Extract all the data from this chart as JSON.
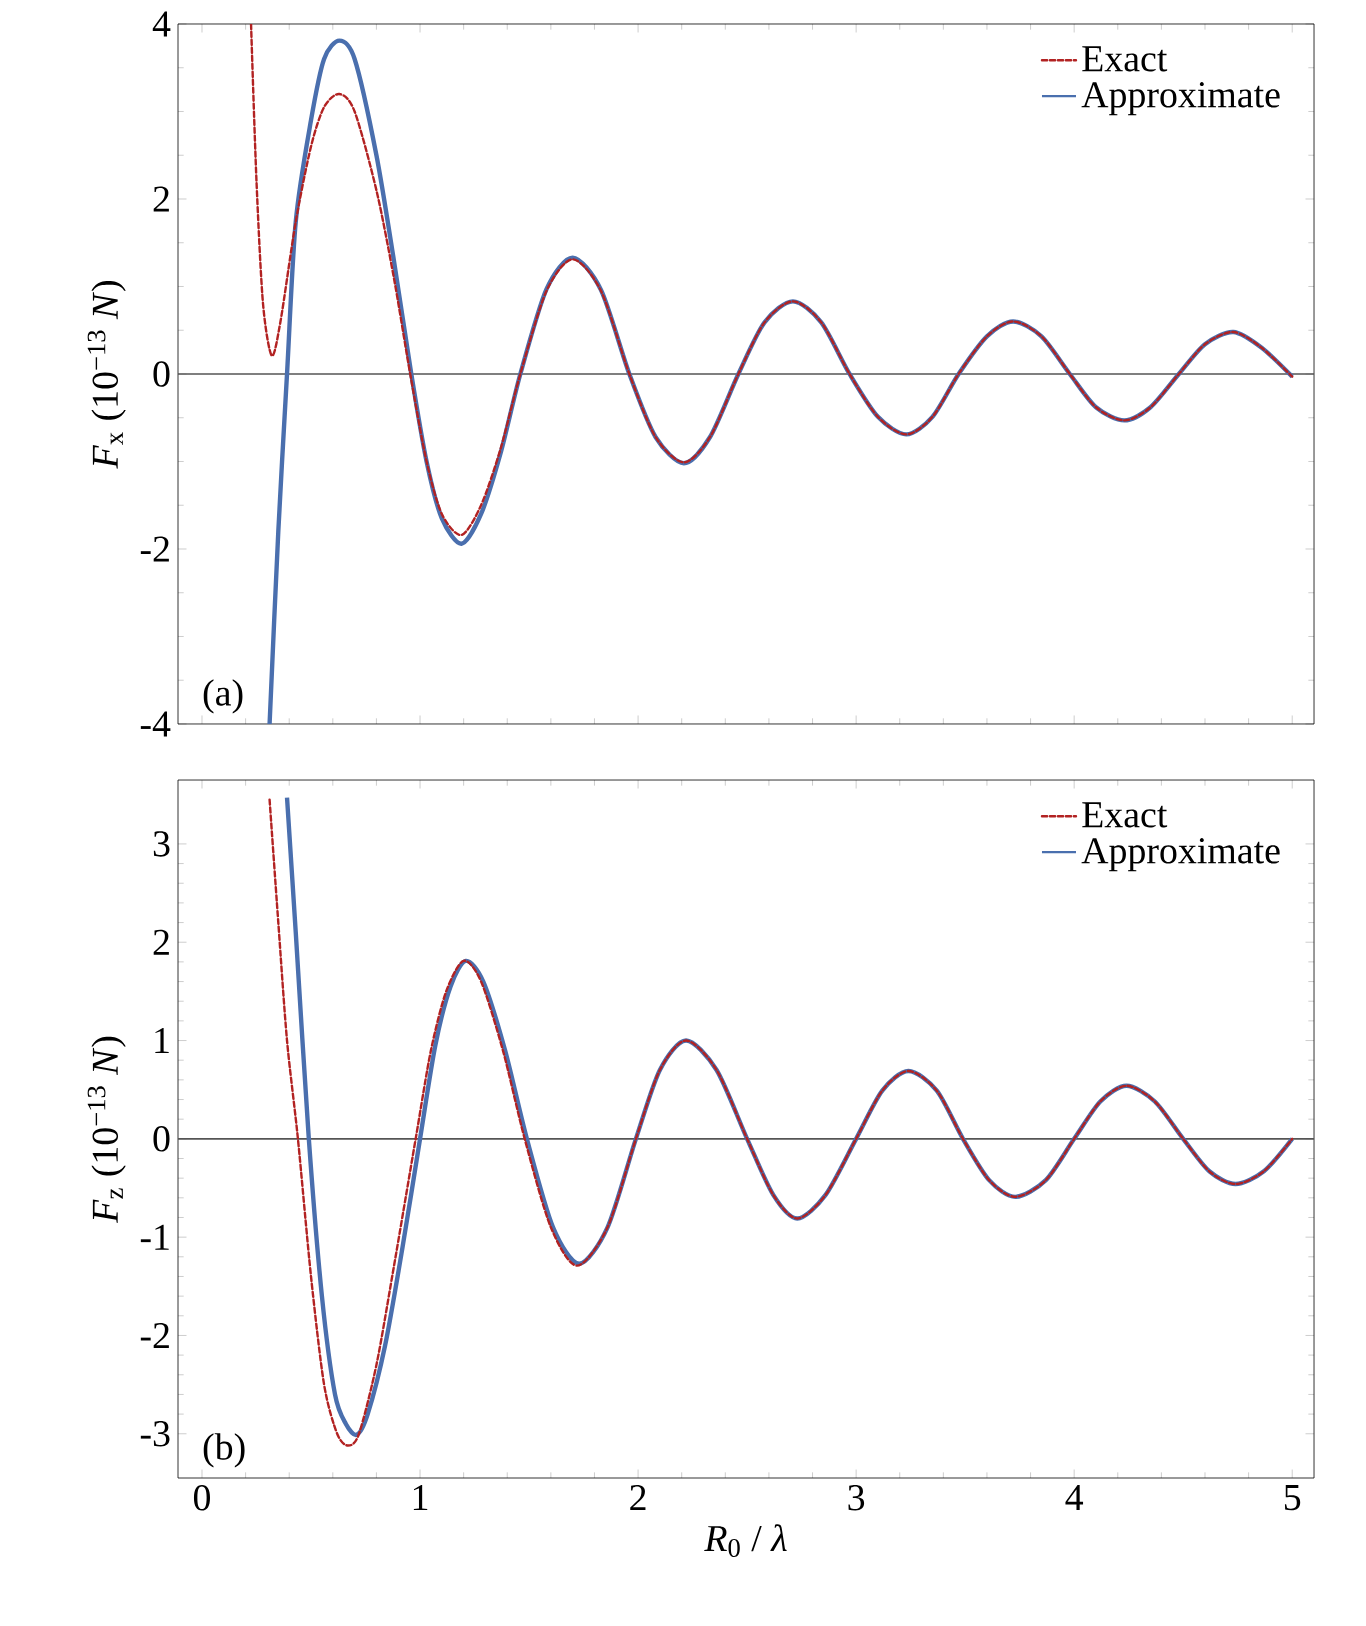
{
  "chart_data": [
    {
      "type": "line",
      "ylabel": "*F*$_{x}$ (10$^{−13}$ *N*)",
      "xlim": [
        -0.11,
        5.1
      ],
      "xticks": [
        0,
        1,
        2,
        3,
        4,
        5
      ],
      "ylim": [
        -4,
        4
      ],
      "yticks": [
        -4,
        -2,
        0,
        2,
        4
      ],
      "tick_labels": "y",
      "legend": "top right",
      "ref_lines": [
        {
          "axis": "y",
          "value": 0,
          "color": "#555555"
        }
      ],
      "annotations": [
        "(a)"
      ],
      "series": [
        {
          "name": "Exact",
          "color": "#b22222",
          "line_style": "dashed",
          "x": [
            0.225,
            0.25,
            0.28,
            0.32,
            0.36,
            0.43,
            0.5,
            0.56,
            0.63,
            0.7,
            0.8,
            0.88,
            0.955,
            1.03,
            1.1,
            1.19,
            1.28,
            1.37,
            1.46,
            1.58,
            1.7,
            1.83,
            1.96,
            2.08,
            2.21,
            2.33,
            2.46,
            2.58,
            2.71,
            2.84,
            2.97,
            3.1,
            3.23,
            3.35,
            3.47,
            3.6,
            3.72,
            3.85,
            3.98,
            4.1,
            4.23,
            4.35,
            4.48,
            4.6,
            4.73,
            4.86,
            5.0
          ],
          "values": [
            4.0,
            2.2,
            0.8,
            0.21,
            0.6,
            1.74,
            2.6,
            3.05,
            3.2,
            3.0,
            2.1,
            1.1,
            0,
            -1.0,
            -1.6,
            -1.84,
            -1.5,
            -0.85,
            0,
            0.95,
            1.31,
            0.95,
            0,
            -0.72,
            -1.01,
            -0.72,
            0,
            0.59,
            0.83,
            0.59,
            0,
            -0.49,
            -0.69,
            -0.49,
            0,
            0.43,
            0.6,
            0.43,
            0,
            -0.38,
            -0.53,
            -0.38,
            0,
            0.34,
            0.48,
            0.3,
            -0.03
          ]
        },
        {
          "name": "Approximate",
          "color": "#4a6fae",
          "line_style": "solid",
          "x": [
            0.31,
            0.35,
            0.39,
            0.43,
            0.5,
            0.56,
            0.63,
            0.7,
            0.8,
            0.88,
            0.96,
            1.03,
            1.1,
            1.19,
            1.28,
            1.37,
            1.46,
            1.58,
            1.7,
            1.83,
            1.96,
            2.08,
            2.21,
            2.33,
            2.46,
            2.58,
            2.71,
            2.84,
            2.97,
            3.1,
            3.23,
            3.35,
            3.47,
            3.6,
            3.72,
            3.85,
            3.98,
            4.1,
            4.23,
            4.35,
            4.48,
            4.6,
            4.73,
            4.86,
            5.0
          ],
          "values": [
            -4.0,
            -1.8,
            0,
            1.74,
            2.9,
            3.6,
            3.81,
            3.6,
            2.5,
            1.3,
            0,
            -1.0,
            -1.65,
            -1.94,
            -1.6,
            -0.9,
            0,
            0.97,
            1.33,
            0.96,
            0,
            -0.72,
            -1.02,
            -0.72,
            0,
            0.59,
            0.83,
            0.59,
            0,
            -0.49,
            -0.69,
            -0.49,
            0,
            0.43,
            0.6,
            0.43,
            0,
            -0.38,
            -0.53,
            -0.38,
            0,
            0.34,
            0.48,
            0.3,
            -0.03
          ]
        }
      ]
    },
    {
      "type": "line",
      "xlabel": "*R*$_{0}$ / *λ*",
      "ylabel": "*F*$_{z}$ (10$^{−13}$ *N*)",
      "xlim": [
        -0.11,
        5.1
      ],
      "xticks": [
        0,
        1,
        2,
        3,
        4,
        5
      ],
      "ylim": [
        -3.45,
        3.65
      ],
      "yticks": [
        -3,
        -2,
        -1,
        0,
        1,
        2,
        3
      ],
      "legend": "top right",
      "ref_lines": [
        {
          "axis": "y",
          "value": 0,
          "color": "#555555"
        }
      ],
      "annotations": [
        "(b)"
      ],
      "series": [
        {
          "name": "Exact",
          "color": "#b22222",
          "line_style": "dashed",
          "x": [
            0.31,
            0.35,
            0.39,
            0.44,
            0.5,
            0.56,
            0.62,
            0.67,
            0.72,
            0.8,
            0.88,
            0.98,
            1.05,
            1.12,
            1.2,
            1.28,
            1.38,
            1.48,
            1.6,
            1.72,
            1.86,
            1.99,
            2.1,
            2.22,
            2.36,
            2.5,
            2.62,
            2.73,
            2.86,
            3.0,
            3.12,
            3.24,
            3.37,
            3.49,
            3.61,
            3.73,
            3.87,
            4.0,
            4.12,
            4.24,
            4.37,
            4.5,
            4.62,
            4.74,
            4.87,
            5.0
          ],
          "values": [
            3.45,
            2.2,
            1.0,
            0,
            -1.4,
            -2.5,
            -3.0,
            -3.12,
            -3.0,
            -2.3,
            -1.3,
            0,
            0.9,
            1.5,
            1.81,
            1.6,
            0.9,
            0,
            -0.9,
            -1.29,
            -0.9,
            0,
            0.7,
            1.0,
            0.7,
            0,
            -0.57,
            -0.81,
            -0.57,
            0,
            0.49,
            0.69,
            0.49,
            0,
            -0.42,
            -0.59,
            -0.42,
            0,
            0.38,
            0.54,
            0.38,
            0,
            -0.33,
            -0.46,
            -0.33,
            0
          ]
        },
        {
          "name": "Approximate",
          "color": "#4a6fae",
          "line_style": "solid",
          "x": [
            0.39,
            0.43,
            0.49,
            0.55,
            0.61,
            0.66,
            0.71,
            0.76,
            0.84,
            0.92,
            1.0,
            1.07,
            1.14,
            1.21,
            1.29,
            1.39,
            1.49,
            1.61,
            1.73,
            1.86,
            1.99,
            2.1,
            2.22,
            2.36,
            2.5,
            2.62,
            2.73,
            2.86,
            3.0,
            3.12,
            3.24,
            3.37,
            3.49,
            3.61,
            3.73,
            3.87,
            4.0,
            4.12,
            4.24,
            4.37,
            4.5,
            4.62,
            4.74,
            4.87,
            5.0
          ],
          "values": [
            3.47,
            2.1,
            0,
            -1.6,
            -2.6,
            -2.9,
            -3.01,
            -2.8,
            -2.1,
            -1.1,
            0,
            0.95,
            1.55,
            1.81,
            1.6,
            0.9,
            0,
            -0.9,
            -1.27,
            -0.9,
            0,
            0.7,
            1.0,
            0.7,
            0,
            -0.57,
            -0.81,
            -0.57,
            0,
            0.49,
            0.69,
            0.49,
            0,
            -0.42,
            -0.59,
            -0.42,
            0,
            0.38,
            0.54,
            0.38,
            0,
            -0.33,
            -0.46,
            -0.33,
            0
          ]
        }
      ]
    }
  ]
}
